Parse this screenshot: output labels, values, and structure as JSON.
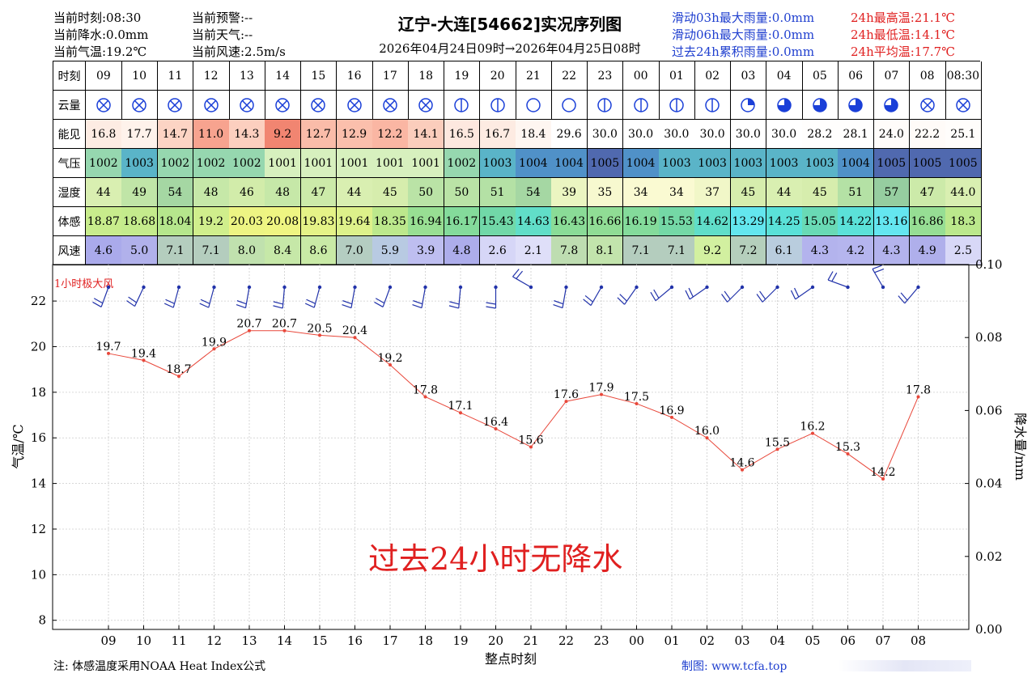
{
  "header": {
    "cur_time": "当前时刻:08:30",
    "cur_rain": "当前降水:0.0mm",
    "cur_temp": "当前气温:19.2℃",
    "cur_warn": "当前预警:--",
    "cur_weather": "当前天气:--",
    "cur_wind": "当前风速:2.5m/s",
    "title": "辽宁-大连[54662]实况序列图",
    "time_range": "2026年04月24日09时→2026年04月25日08时",
    "rain3h": "滑动03h最大雨量:0.0mm",
    "rain6h": "滑动06h最大雨量:0.0mm",
    "rain24h": "过去24h累积雨量:0.0mm",
    "tmax": "24h最高温:21.1℃",
    "tmin": "24h最低温:14.1℃",
    "tavg": "24h平均温:17.7℃"
  },
  "table": {
    "row_labels": [
      "时刻",
      "云量",
      "能见",
      "气压",
      "湿度",
      "体感",
      "风速"
    ],
    "hours": [
      "09",
      "10",
      "11",
      "12",
      "13",
      "14",
      "15",
      "16",
      "17",
      "18",
      "19",
      "20",
      "21",
      "22",
      "23",
      "00",
      "01",
      "02",
      "03",
      "04",
      "05",
      "06",
      "07",
      "08",
      "08:30"
    ],
    "cloud": [
      9,
      9,
      9,
      9,
      9,
      9,
      9,
      9,
      9,
      9,
      1,
      1,
      0,
      0,
      1,
      1,
      1,
      1,
      3,
      5,
      5,
      7,
      7,
      9,
      9
    ],
    "visibility": [
      "16.8",
      "17.7",
      "14.7",
      "11.0",
      "14.3",
      "9.2",
      "12.7",
      "12.9",
      "12.2",
      "14.1",
      "16.5",
      "16.7",
      "18.4",
      "29.6",
      "30.0",
      "30.0",
      "30.0",
      "30.0",
      "30.0",
      "30.0",
      "28.2",
      "28.1",
      "24.0",
      "22.2",
      "25.1"
    ],
    "pressure": [
      "1002",
      "1003",
      "1002",
      "1002",
      "1002",
      "1001",
      "1001",
      "1001",
      "1001",
      "1001",
      "1002",
      "1003",
      "1004",
      "1004",
      "1005",
      "1004",
      "1003",
      "1003",
      "1003",
      "1003",
      "1003",
      "1004",
      "1005",
      "1005",
      "1005"
    ],
    "humidity": [
      "44",
      "49",
      "54",
      "48",
      "46",
      "48",
      "47",
      "44",
      "45",
      "50",
      "50",
      "51",
      "54",
      "39",
      "35",
      "34",
      "34",
      "37",
      "45",
      "44",
      "45",
      "51",
      "57",
      "47",
      "44.0"
    ],
    "feels_like": [
      "18.87",
      "18.68",
      "18.04",
      "19.2",
      "20.03",
      "20.08",
      "19.83",
      "19.64",
      "18.35",
      "16.94",
      "16.17",
      "15.43",
      "14.63",
      "16.43",
      "16.66",
      "16.19",
      "15.53",
      "14.62",
      "13.29",
      "14.25",
      "15.05",
      "14.22",
      "13.16",
      "16.86",
      "18.3"
    ],
    "wind_speed": [
      "4.6",
      "5.0",
      "7.1",
      "7.1",
      "8.0",
      "8.4",
      "8.6",
      "7.0",
      "5.9",
      "3.9",
      "4.8",
      "2.6",
      "2.1",
      "7.8",
      "8.1",
      "7.1",
      "7.1",
      "9.2",
      "7.2",
      "6.1",
      "4.3",
      "4.2",
      "4.3",
      "4.9",
      "2.5"
    ]
  },
  "chart_data": {
    "type": "line",
    "title": "辽宁-大连[54662]实况序列图",
    "xlabel": "整点时刻",
    "ylabel": "气温/℃",
    "y2label": "降水量/mm",
    "categories": [
      "09",
      "10",
      "11",
      "12",
      "13",
      "14",
      "15",
      "16",
      "17",
      "18",
      "19",
      "20",
      "21",
      "22",
      "23",
      "00",
      "01",
      "02",
      "03",
      "04",
      "05",
      "06",
      "07",
      "08"
    ],
    "series": [
      {
        "values": [
          19.7,
          19.4,
          18.7,
          19.9,
          20.7,
          20.7,
          20.5,
          20.4,
          19.2,
          17.8,
          17.1,
          16.4,
          15.6,
          17.6,
          17.9,
          17.5,
          16.9,
          16.0,
          14.6,
          15.5,
          16.2,
          15.3,
          14.2,
          17.8
        ]
      }
    ],
    "wind_dir_deg": [
      200,
      205,
      195,
      195,
      190,
      185,
      195,
      190,
      200,
      190,
      185,
      180,
      300,
      190,
      210,
      215,
      230,
      235,
      225,
      225,
      235,
      290,
      330,
      220
    ],
    "ylim": [
      7.6,
      23.6
    ],
    "y_ticks": [
      "8",
      "10",
      "12",
      "14",
      "16",
      "18",
      "20",
      "22"
    ],
    "y2lim": [
      0,
      0.1
    ],
    "y2_ticks": [
      "0.00",
      "0.02",
      "0.04",
      "0.06",
      "0.08",
      "0.10"
    ],
    "wind_label": "1小时极大风",
    "annotation": "过去24小时无降水",
    "grid": true,
    "line_color": "#e8473a"
  },
  "footer": {
    "note": "注: 体感温度采用NOAA Heat Index公式",
    "credit": "制图: www.tcfa.top"
  }
}
